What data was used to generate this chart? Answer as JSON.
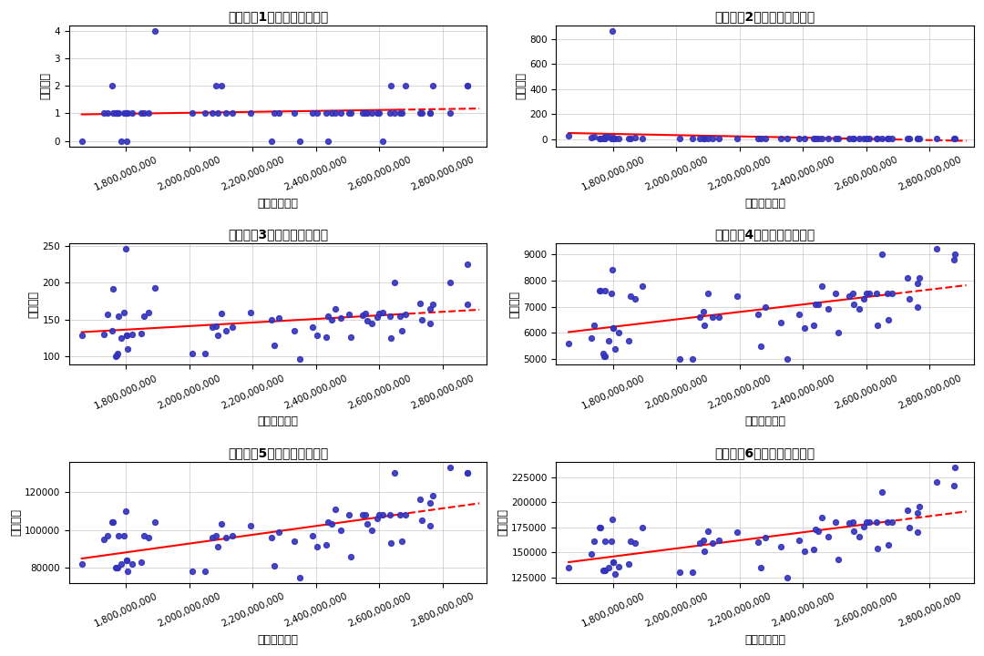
{
  "titles": [
    "販売額と1等当選本数の関係",
    "販売額と2等当選本数の関係",
    "販売額と3等当選本数の関係",
    "販売額と4等当選本数の関係",
    "販売額と5等当選本数の関係",
    "販売額と6等当選本数の関係"
  ],
  "xlabel": "販売額（円）",
  "ylabel": "当選本数",
  "sales": [
    1659900300,
    1730863500,
    1740922800,
    1756911600,
    1759819200,
    1768561500,
    1771296000,
    1773175200,
    1775776800,
    1784642400,
    1793901600,
    1797987600,
    1800597600,
    1801872000,
    1804917600,
    1817582400,
    1848625200,
    1855569600,
    1870009200,
    1892311200,
    2009304000,
    2049984000,
    2073052800,
    2084824800,
    2088190800,
    2100088800,
    2114248800,
    2134832400,
    2192860800,
    2258866800,
    2267996400,
    2281424400,
    2330992800,
    2349050400,
    2388268800,
    2404360800,
    2432498400,
    2439064800,
    2448799200,
    2459484000,
    2479540800,
    2503648800,
    2510773200,
    2546600400,
    2556256800,
    2560676400,
    2576248800,
    2592280800,
    2599480800,
    2610597600,
    2632701600,
    2635210800,
    2649279600,
    2666066400,
    2670768000,
    2681636400,
    2728900800,
    2735460000,
    2760487200,
    2761380000,
    2768994000,
    2823600000,
    2876922000,
    2879622000
  ],
  "winners_1": [
    0,
    1,
    1,
    2,
    1,
    1,
    1,
    1,
    1,
    0,
    1,
    1,
    1,
    0,
    1,
    1,
    1,
    1,
    1,
    4,
    1,
    1,
    1,
    2,
    1,
    2,
    1,
    1,
    1,
    0,
    1,
    1,
    1,
    0,
    1,
    1,
    1,
    0,
    1,
    1,
    1,
    1,
    1,
    1,
    1,
    1,
    1,
    1,
    1,
    0,
    1,
    2,
    1,
    1,
    1,
    2,
    1,
    1,
    1,
    1,
    2,
    1,
    2,
    2
  ],
  "winners_2": [
    26,
    10,
    20,
    6,
    6,
    2,
    12,
    3,
    19,
    19,
    5,
    866,
    7,
    10,
    5,
    3,
    4,
    5,
    11,
    3,
    7,
    5,
    7,
    8,
    5,
    3,
    4,
    5,
    4,
    5,
    6,
    4,
    4,
    5,
    6,
    4,
    5,
    5,
    4,
    5,
    4,
    5,
    4,
    3,
    3,
    5,
    3,
    5,
    4,
    4,
    4,
    4,
    4,
    4,
    4,
    5,
    4,
    5,
    4,
    4,
    4,
    5,
    3,
    4
  ],
  "winners_3": [
    128,
    130,
    157,
    134,
    192,
    100,
    101,
    104,
    155,
    125,
    160,
    246,
    128,
    128,
    110,
    130,
    131,
    155,
    160,
    193,
    103,
    103,
    140,
    141,
    128,
    158,
    135,
    140,
    160,
    150,
    115,
    152,
    135,
    96,
    140,
    128,
    126,
    155,
    150,
    165,
    152,
    157,
    126,
    156,
    158,
    148,
    145,
    153,
    158,
    160,
    155,
    125,
    200,
    155,
    135,
    157,
    172,
    150,
    145,
    165,
    170,
    200,
    225,
    170
  ],
  "winners_4": [
    5600,
    5800,
    6300,
    7600,
    7600,
    5200,
    5100,
    5100,
    7600,
    5700,
    7500,
    8400,
    6200,
    6200,
    5400,
    6000,
    5700,
    7400,
    7300,
    7800,
    5000,
    5000,
    6600,
    6800,
    6300,
    7500,
    6600,
    6600,
    7400,
    6700,
    5500,
    7000,
    6400,
    5000,
    6700,
    6200,
    6300,
    7100,
    7100,
    7800,
    6900,
    7500,
    6000,
    7400,
    7500,
    7100,
    6900,
    7300,
    7500,
    7500,
    7500,
    6300,
    9000,
    7500,
    6500,
    7500,
    8100,
    7300,
    7000,
    7900,
    8100,
    9200,
    8800,
    9000
  ],
  "winners_5": [
    82000,
    95000,
    97000,
    104000,
    104000,
    80000,
    80000,
    80000,
    97000,
    82000,
    97000,
    110000,
    84000,
    84000,
    78000,
    82000,
    83000,
    97000,
    96000,
    104000,
    78000,
    78000,
    96000,
    97000,
    91000,
    103000,
    96000,
    97000,
    102000,
    96000,
    81000,
    99000,
    94000,
    75000,
    97000,
    91000,
    92000,
    104000,
    103000,
    111000,
    100000,
    108000,
    86000,
    108000,
    108000,
    103000,
    100000,
    106000,
    108000,
    108000,
    108000,
    93000,
    130000,
    108000,
    94000,
    108000,
    116000,
    105000,
    102000,
    114000,
    118000,
    133000,
    130000,
    130000
  ],
  "winners_6": [
    135000,
    148000,
    161000,
    175000,
    175000,
    132000,
    132000,
    132000,
    161000,
    135000,
    161000,
    183000,
    140000,
    140000,
    128000,
    136000,
    138000,
    161000,
    159000,
    175000,
    130000,
    130000,
    159000,
    162000,
    151000,
    171000,
    159000,
    162000,
    170000,
    160000,
    135000,
    165000,
    156000,
    125000,
    162000,
    151000,
    153000,
    173000,
    171000,
    185000,
    166000,
    180000,
    143000,
    179000,
    180000,
    171000,
    166000,
    176000,
    180000,
    180000,
    180000,
    154000,
    210000,
    180000,
    157000,
    180000,
    192000,
    175000,
    170000,
    189000,
    196000,
    220000,
    217000,
    235000
  ],
  "scatter_color": "#3333BB",
  "line_color": "red",
  "bg_color": "white",
  "grid_color": "#bbbbbb",
  "title_fontsize": 10,
  "label_fontsize": 9,
  "tick_fontsize": 7.5,
  "xlim": [
    1620000000,
    2940000000
  ],
  "xticks": [
    1800000000,
    2000000000,
    2200000000,
    2400000000,
    2600000000,
    2800000000
  ]
}
